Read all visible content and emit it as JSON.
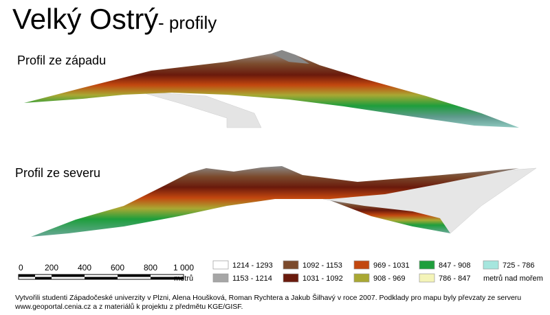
{
  "header": {
    "title": "Velký Ostrý",
    "subtitle": "- profily"
  },
  "profiles": [
    "Profil ze západu",
    "Profil ze severu"
  ],
  "scale": {
    "labels": [
      "0",
      "200",
      "400",
      "600",
      "800",
      "1 000"
    ],
    "unit": "metrů"
  },
  "legend": {
    "items": [
      {
        "label": "1214 - 1293",
        "color": "#ffffff"
      },
      {
        "label": "1153 - 1214",
        "color": "#a6a6a6"
      },
      {
        "label": "1092 - 1153",
        "color": "#7b4a2c"
      },
      {
        "label": "1031 - 1092",
        "color": "#6a1a0c"
      },
      {
        "label": "969 - 1031",
        "color": "#c2470f"
      },
      {
        "label": "908 - 969",
        "color": "#a9a833"
      },
      {
        "label": "847 - 908",
        "color": "#1e9e3c"
      },
      {
        "label": "786 - 847",
        "color": "#f4f4b8"
      },
      {
        "label": "725 - 786",
        "color": "#a6e6de"
      }
    ],
    "unit": "metrů nad mořem"
  },
  "footer": [
    "Vytvořili studenti Západočeské univerzity v Plzni, Alena Houšková, Roman Rychtera a Jakub Šilhavý v roce 2007. Podklady pro mapu byly převzaty ze serveru",
    "www.geoportal.cenia.cz a z materiálů k projektu z předmětu KGE/GISF."
  ]
}
